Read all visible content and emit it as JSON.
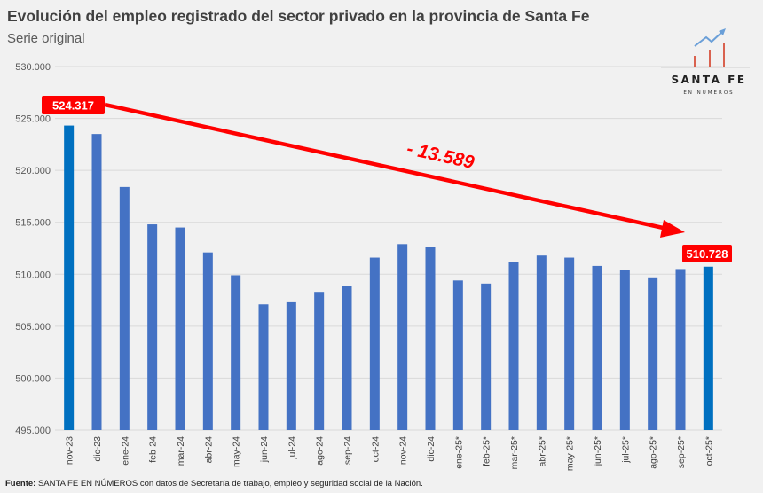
{
  "chart_data": {
    "type": "bar",
    "title": "Evolución del empleo registrado del sector privado en la provincia de Santa Fe",
    "subtitle": "Serie original",
    "categories": [
      "nov-23",
      "dic-23",
      "ene-24",
      "feb-24",
      "mar-24",
      "abr-24",
      "may-24",
      "jun-24",
      "jul-24",
      "ago-24",
      "sep-24",
      "oct-24",
      "nov-24",
      "dic-24",
      "ene-25*",
      "feb-25*",
      "mar-25*",
      "abr-25*",
      "may-25*",
      "jun-25*",
      "jul-25*",
      "ago-25*",
      "sep-25*",
      "oct-25*"
    ],
    "values": [
      524317,
      523500,
      518400,
      514800,
      514500,
      512100,
      509900,
      507100,
      507300,
      508300,
      508900,
      511600,
      512900,
      512600,
      509400,
      509100,
      511200,
      511800,
      511600,
      510800,
      510400,
      509700,
      510500,
      510728
    ],
    "ylim": [
      495000,
      530000
    ],
    "yticks": [
      "495.000",
      "500.000",
      "505.000",
      "510.000",
      "515.000",
      "520.000",
      "525.000",
      "530.000"
    ],
    "ytick_values": [
      495000,
      500000,
      505000,
      510000,
      515000,
      520000,
      525000,
      530000
    ],
    "grid": true,
    "colors": {
      "bar": "#4472c4",
      "highlight": "#0070c0",
      "annotation": "#ff0000"
    },
    "highlighted": [
      "nov-23",
      "oct-25*"
    ],
    "annotations": {
      "start_label": "524.317",
      "end_label": "510.728",
      "difference": "- 13.589"
    }
  },
  "logo": {
    "line1": "SANTA FE",
    "line2": "EN NÚMEROS"
  },
  "footer": {
    "label": "Fuente:",
    "text": " SANTA FE EN NÚMEROS con datos de Secretaría de trabajo, empleo y seguridad social de la Nación."
  }
}
